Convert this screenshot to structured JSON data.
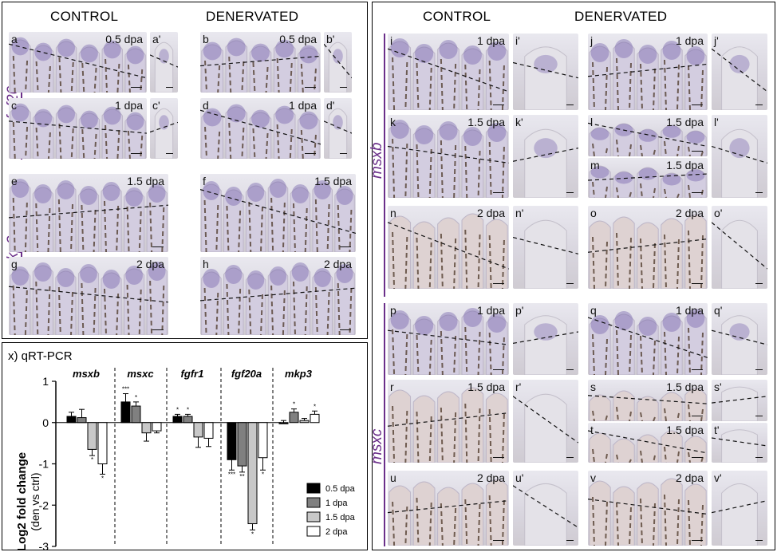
{
  "headers": {
    "left_control": "CONTROL",
    "left_denervated": "DENERVATED",
    "right_control": "CONTROL",
    "right_denervated": "DENERVATED"
  },
  "genes": {
    "fgf20a": "fgf20a",
    "mkp3": "mkp3",
    "msxb": "msxb",
    "msxc": "msxc"
  },
  "panels": {
    "a": {
      "letter": "a",
      "time": "0.5 dpa"
    },
    "a2": {
      "letter": "a'"
    },
    "b": {
      "letter": "b",
      "time": "0.5 dpa"
    },
    "b2": {
      "letter": "b'"
    },
    "c": {
      "letter": "c",
      "time": "1 dpa"
    },
    "c2": {
      "letter": "c'"
    },
    "d": {
      "letter": "d",
      "time": "1 dpa"
    },
    "d2": {
      "letter": "d'"
    },
    "e": {
      "letter": "e",
      "time": "1.5 dpa"
    },
    "f": {
      "letter": "f",
      "time": "1.5 dpa"
    },
    "g": {
      "letter": "g",
      "time": "2 dpa"
    },
    "h": {
      "letter": "h",
      "time": "2 dpa"
    },
    "i": {
      "letter": "i",
      "time": "1 dpa"
    },
    "i2": {
      "letter": "i'"
    },
    "j": {
      "letter": "j",
      "time": "1 dpa"
    },
    "j2": {
      "letter": "j'"
    },
    "k": {
      "letter": "k",
      "time": "1.5 dpa"
    },
    "k2": {
      "letter": "k'"
    },
    "l": {
      "letter": "l",
      "time": "1.5 dpa"
    },
    "l2": {
      "letter": "l'"
    },
    "m": {
      "letter": "m",
      "time": "1.5 dpa"
    },
    "n": {
      "letter": "n",
      "time": "2 dpa"
    },
    "n2": {
      "letter": "n'"
    },
    "o": {
      "letter": "o",
      "time": "2 dpa"
    },
    "o2": {
      "letter": "o'"
    },
    "p": {
      "letter": "p",
      "time": "1 dpa"
    },
    "p2": {
      "letter": "p'"
    },
    "q": {
      "letter": "q",
      "time": "1 dpa"
    },
    "q2": {
      "letter": "q'"
    },
    "r": {
      "letter": "r",
      "time": "1.5 dpa"
    },
    "r2": {
      "letter": "r'"
    },
    "s": {
      "letter": "s",
      "time": "1.5 dpa"
    },
    "s2": {
      "letter": "s'"
    },
    "t": {
      "letter": "t",
      "time": "1.5 dpa"
    },
    "t2": {
      "letter": "t'"
    },
    "u": {
      "letter": "u",
      "time": "2 dpa"
    },
    "u2": {
      "letter": "u'"
    },
    "v": {
      "letter": "v",
      "time": "2 dpa"
    },
    "v2": {
      "letter": "v'"
    }
  },
  "chart_data": {
    "type": "bar",
    "title": "x) qRT-PCR",
    "ylabel": "Log2 fold change",
    "ylabel2": "(den vs ctrl)",
    "ylim": [
      -3,
      1
    ],
    "yticks": [
      "1",
      "0",
      "-1",
      "-2",
      "-3"
    ],
    "categories": [
      "msxb",
      "msxc",
      "fgfr1",
      "fgf20a",
      "mkp3"
    ],
    "series": [
      {
        "name": "0.5 dpa",
        "color": "#000000",
        "values": [
          0.15,
          0.5,
          0.15,
          -0.9,
          0.0
        ]
      },
      {
        "name": "1 dpa",
        "color": "#808080",
        "values": [
          0.12,
          0.4,
          0.15,
          -1.05,
          0.25
        ]
      },
      {
        "name": "1.5 dpa",
        "color": "#c8c8c8",
        "values": [
          -0.65,
          -0.25,
          -0.35,
          -2.45,
          0.05
        ]
      },
      {
        "name": "2 dpa",
        "color": "#ffffff",
        "values": [
          -1.0,
          -0.2,
          -0.38,
          -0.85,
          0.2
        ]
      }
    ],
    "errors": [
      [
        0.1,
        0.2,
        0.15,
        0.25
      ],
      [
        0.2,
        0.1,
        0.2,
        0.05
      ],
      [
        0.05,
        0.05,
        0.25,
        0.2
      ],
      [
        0.25,
        0.15,
        0.15,
        0.3
      ],
      [
        0.05,
        0.08,
        0.05,
        0.08
      ]
    ],
    "stars": [
      [
        "",
        "",
        "*",
        "*"
      ],
      [
        "***",
        "*",
        "",
        ""
      ],
      [
        "*",
        "*",
        "",
        ""
      ],
      [
        "***",
        "**",
        "*",
        "*"
      ],
      [
        "",
        "*",
        "",
        "*"
      ]
    ],
    "legend_position": "bottom-right"
  }
}
